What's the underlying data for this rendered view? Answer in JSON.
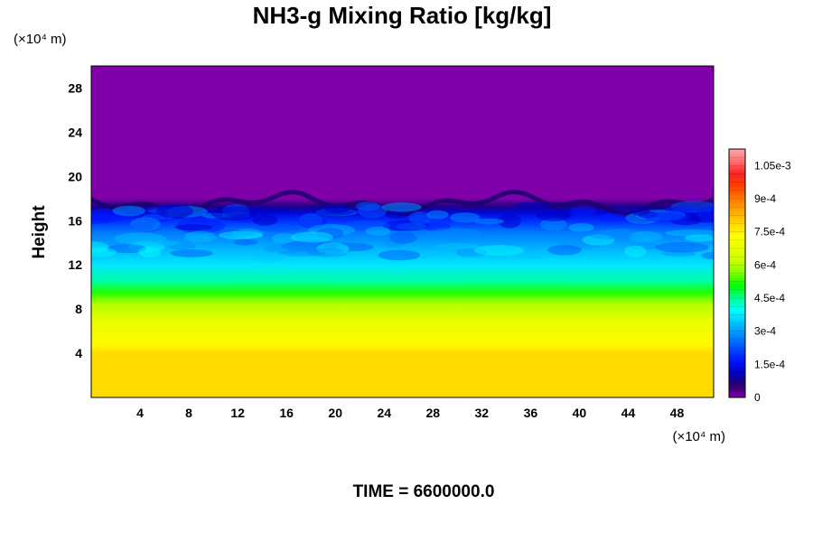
{
  "chart_data": {
    "type": "heatmap",
    "title": "NH3-g Mixing Ratio [kg/kg]",
    "ylabel": "Height",
    "xlabel": "",
    "x_unit": "(×10⁴ m)",
    "y_unit": "(×10⁴ m)",
    "x_ticks": [
      4,
      8,
      12,
      16,
      20,
      24,
      28,
      32,
      36,
      40,
      44,
      48
    ],
    "y_ticks": [
      4,
      8,
      12,
      16,
      20,
      24,
      28
    ],
    "xlim": [
      0,
      51
    ],
    "ylim": [
      0,
      30
    ],
    "profile": {
      "heights": [
        0,
        4.0,
        4.8,
        7.0,
        8.5,
        9.5,
        10.5,
        12.0,
        13.5,
        15.0,
        16.0,
        16.7,
        17.3,
        18.0,
        30
      ],
      "values": [
        0.00078,
        0.00078,
        0.00074,
        0.00068,
        0.0006,
        0.00052,
        0.00044,
        0.00037,
        0.00032,
        0.00026,
        0.00019,
        0.00013,
        7e-05,
        0,
        0
      ]
    },
    "colorbar": {
      "min": 0,
      "max": 0.001125,
      "ticks": [
        {
          "value": 0,
          "label": "0"
        },
        {
          "value": 0.00015,
          "label": "1.5e-4"
        },
        {
          "value": 0.0003,
          "label": "3e-4"
        },
        {
          "value": 0.00045,
          "label": "4.5e-4"
        },
        {
          "value": 0.0006,
          "label": "6e-4"
        },
        {
          "value": 0.00075,
          "label": "7.5e-4"
        },
        {
          "value": 0.0009,
          "label": "9e-4"
        },
        {
          "value": 0.00105,
          "label": "1.05e-3"
        }
      ],
      "colors": [
        "#7f00a8",
        "#2a006e",
        "#0000c8",
        "#0018ff",
        "#0050ff",
        "#008cff",
        "#00c4ff",
        "#00ffff",
        "#00ff90",
        "#00ff00",
        "#7fff00",
        "#c8ff00",
        "#e6ff00",
        "#ffff00",
        "#ffd700",
        "#ffaa00",
        "#ff7a00",
        "#ff4000",
        "#ff2020",
        "#ff6e6e",
        "#ffa6a6"
      ]
    }
  },
  "footer": {
    "time_label": "TIME = 6600000.0"
  }
}
